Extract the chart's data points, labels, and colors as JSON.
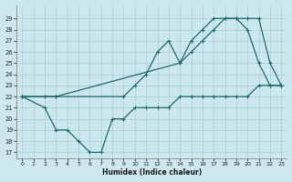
{
  "xlabel": "Humidex (Indice chaleur)",
  "background_color": "#cce8ee",
  "grid_color": "#aacdd6",
  "line_color": "#1a6b6b",
  "line1": {
    "x": [
      0,
      2,
      3,
      4,
      5,
      6,
      7,
      8,
      9,
      10,
      11,
      12,
      13,
      14,
      15,
      16,
      17,
      18,
      19,
      20,
      21,
      22,
      23
    ],
    "y": [
      22,
      21,
      19,
      19,
      18,
      17,
      17,
      20,
      20,
      21,
      21,
      21,
      21,
      22,
      22,
      22,
      22,
      22,
      22,
      22,
      23,
      23,
      23
    ]
  },
  "line2": {
    "x": [
      0,
      2,
      3,
      9,
      10,
      11,
      12,
      13,
      14,
      15,
      16,
      17,
      18,
      19,
      20,
      21,
      22,
      23
    ],
    "y": [
      22,
      22,
      22,
      22,
      23,
      24,
      26,
      27,
      25,
      27,
      28,
      29,
      29,
      29,
      28,
      25,
      23,
      23
    ]
  },
  "line3": {
    "x": [
      0,
      3,
      14,
      15,
      16,
      17,
      18,
      19,
      20,
      21,
      22,
      23
    ],
    "y": [
      22,
      22,
      25,
      26,
      27,
      28,
      29,
      29,
      29,
      29,
      25,
      23
    ]
  },
  "ylim": [
    16.5,
    30.2
  ],
  "xlim": [
    -0.5,
    23.5
  ],
  "yticks": [
    17,
    18,
    19,
    20,
    21,
    22,
    23,
    24,
    25,
    26,
    27,
    28,
    29
  ],
  "xticks": [
    0,
    1,
    2,
    3,
    4,
    5,
    6,
    7,
    8,
    9,
    10,
    11,
    12,
    13,
    14,
    15,
    16,
    17,
    18,
    19,
    20,
    21,
    22,
    23
  ]
}
